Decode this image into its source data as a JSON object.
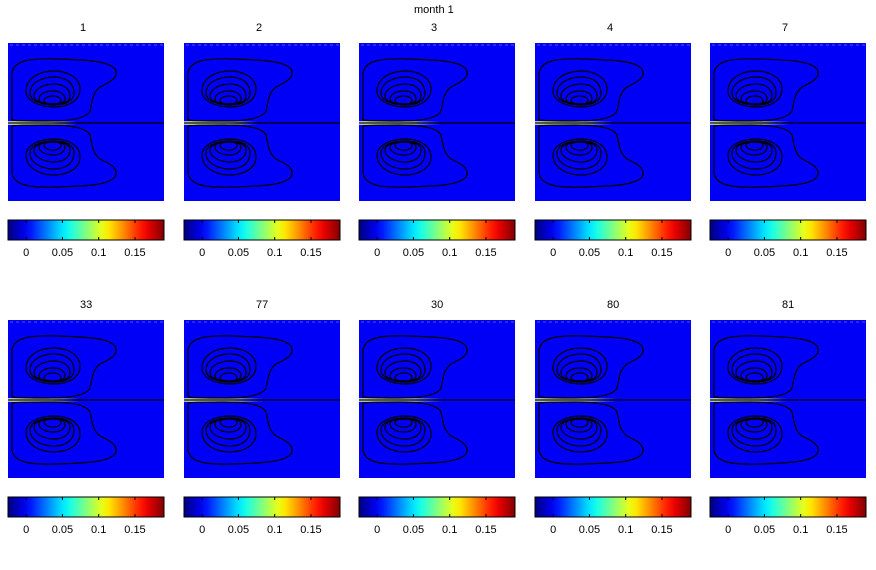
{
  "figure": {
    "suptitle": "month   1"
  },
  "colorbar": {
    "tick_labels": [
      "0",
      "0.05",
      "0.1",
      "0.15"
    ],
    "ticks": [
      0,
      0.05,
      0.1,
      0.15
    ],
    "clim": [
      -0.025,
      0.19
    ],
    "colormap": "jet"
  },
  "chart_data": [
    {
      "type": "heatmap",
      "title": "1",
      "colormap": "jet",
      "clim": [
        -0.025,
        0.19
      ],
      "has_contours": true,
      "highlight_intensity": 0.25
    },
    {
      "type": "heatmap",
      "title": "2",
      "colormap": "jet",
      "clim": [
        -0.025,
        0.19
      ],
      "has_contours": true,
      "highlight_intensity": 0.35
    },
    {
      "type": "heatmap",
      "title": "3",
      "colormap": "jet",
      "clim": [
        -0.025,
        0.19
      ],
      "has_contours": true,
      "highlight_intensity": 0.55
    },
    {
      "type": "heatmap",
      "title": "4",
      "colormap": "jet",
      "clim": [
        -0.025,
        0.19
      ],
      "has_contours": true,
      "highlight_intensity": 0.45
    },
    {
      "type": "heatmap",
      "title": "7",
      "colormap": "jet",
      "clim": [
        -0.025,
        0.19
      ],
      "has_contours": true,
      "highlight_intensity": 0.5
    },
    {
      "type": "heatmap",
      "title": "33",
      "colormap": "jet",
      "clim": [
        -0.025,
        0.19
      ],
      "has_contours": true,
      "highlight_intensity": 0.3
    },
    {
      "type": "heatmap",
      "title": "77",
      "colormap": "jet",
      "clim": [
        -0.025,
        0.19
      ],
      "has_contours": true,
      "highlight_intensity": 0.5
    },
    {
      "type": "heatmap",
      "title": "30",
      "colormap": "jet",
      "clim": [
        -0.025,
        0.19
      ],
      "has_contours": true,
      "highlight_intensity": 0.6
    },
    {
      "type": "heatmap",
      "title": "80",
      "colormap": "jet",
      "clim": [
        -0.025,
        0.19
      ],
      "has_contours": true,
      "highlight_intensity": 0.55
    },
    {
      "type": "heatmap",
      "title": "81",
      "colormap": "jet",
      "clim": [
        -0.025,
        0.19
      ],
      "has_contours": true,
      "highlight_intensity": 0.45
    }
  ]
}
